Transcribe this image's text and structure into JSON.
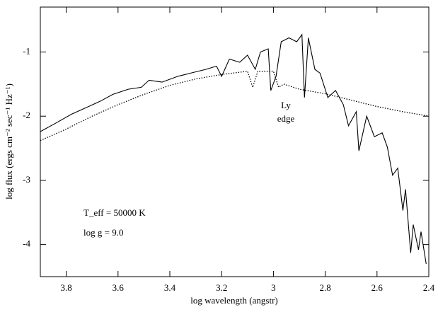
{
  "chart_data": {
    "type": "line",
    "x_label": "log wavelength (angstr)",
    "y_label": "log flux (ergs cm⁻² sec⁻¹ Hz⁻¹)",
    "annotations": [
      "Ly",
      "edge",
      "T_eff = 50000 K",
      "log g = 9.0"
    ],
    "xlim": [
      3.9,
      2.4
    ],
    "ylim": [
      -4.5,
      -0.3
    ],
    "xticks": [
      3.8,
      3.6,
      3.4,
      3.2,
      3,
      2.8,
      2.6,
      2.4
    ],
    "yticks": [
      -1,
      -2,
      -3,
      -4
    ],
    "grid": false,
    "series": [
      {
        "color": "#000000",
        "dash": false,
        "x": [
          3.9,
          3.837,
          3.78,
          3.73,
          3.67,
          3.62,
          3.56,
          3.51,
          3.48,
          3.43,
          3.37,
          3.32,
          3.26,
          3.22,
          3.2,
          3.17,
          3.13,
          3.1,
          3.07,
          3.05,
          3.02,
          3.01,
          2.99,
          2.97,
          2.94,
          2.91,
          2.89,
          2.88,
          2.865,
          2.84,
          2.82,
          2.79,
          2.76,
          2.73,
          2.71,
          2.68,
          2.67,
          2.64,
          2.61,
          2.58,
          2.56,
          2.54,
          2.52,
          2.5,
          2.49,
          2.47,
          2.46,
          2.44,
          2.43,
          2.41
        ],
        "values": [
          -2.24,
          -2.1,
          -1.97,
          -1.88,
          -1.77,
          -1.66,
          -1.58,
          -1.55,
          -1.44,
          -1.47,
          -1.38,
          -1.33,
          -1.27,
          -1.22,
          -1.38,
          -1.11,
          -1.16,
          -1.05,
          -1.27,
          -1.0,
          -0.95,
          -1.6,
          -1.38,
          -0.84,
          -0.78,
          -0.84,
          -0.73,
          -1.71,
          -0.78,
          -1.27,
          -1.33,
          -1.71,
          -1.6,
          -1.82,
          -2.15,
          -1.93,
          -2.54,
          -2.0,
          -2.32,
          -2.26,
          -2.48,
          -2.92,
          -2.81,
          -3.47,
          -3.14,
          -4.13,
          -3.69,
          -4.08,
          -3.8,
          -4.3
        ]
      },
      {
        "color": "#000000",
        "dash": true,
        "x": [
          3.9,
          3.8,
          3.7,
          3.6,
          3.5,
          3.4,
          3.3,
          3.2,
          3.1,
          3.08,
          3.06,
          3.0,
          2.98,
          2.96,
          2.9,
          2.8,
          2.7,
          2.6,
          2.5,
          2.4
        ],
        "values": [
          -2.38,
          -2.2,
          -2.0,
          -1.82,
          -1.66,
          -1.52,
          -1.42,
          -1.35,
          -1.3,
          -1.55,
          -1.3,
          -1.3,
          -1.55,
          -1.5,
          -1.58,
          -1.65,
          -1.75,
          -1.85,
          -1.93,
          -2.0
        ]
      }
    ]
  }
}
